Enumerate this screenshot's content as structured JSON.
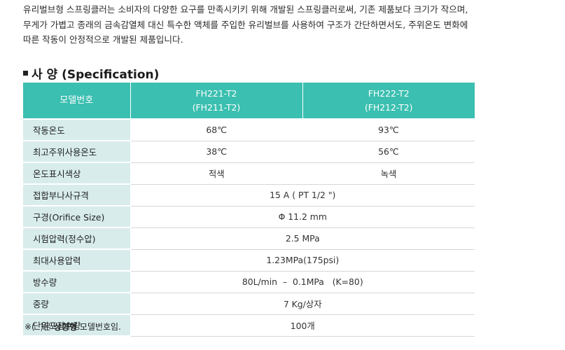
{
  "intro": [
    "유리벌브형 스프링클러는 소비자의 다양한 요구를 만족시키키 위해 개발된 스프링클러로써, 기존 제품보다 크기가 작으며,",
    "무게가 가볍고 종래의 금속감열체 대신 특수한 액체를 주입한 유리벌브를 사용하여 구조가 간단하면서도, 주위온도 변화에",
    "따른 작동이 안정적으로 개발된 제품입니다."
  ],
  "heading": "사 양 (Specification)",
  "table": {
    "header_label": "모델번호",
    "models": [
      {
        "line1": "FH221-T2",
        "line2": "(FH211-T2)"
      },
      {
        "line1": "FH222-T2",
        "line2": "(FH212-T2)"
      }
    ],
    "split_rows": [
      {
        "label": "작동온도",
        "values": [
          "68℃",
          "93℃"
        ]
      },
      {
        "label": "최고주위사용온도",
        "values": [
          "38℃",
          "56℃"
        ]
      },
      {
        "label": "온도표시색상",
        "values": [
          "적색",
          "녹색"
        ]
      }
    ],
    "merged_rows": [
      {
        "label": "접합부나사규격",
        "value": "15 A ( PT 1/2 \")"
      },
      {
        "label": "구경(Orifice Size)",
        "value": "Φ 11.2 mm"
      },
      {
        "label": "시험압력(정수압)",
        "value": "2.5 MPa"
      },
      {
        "label": "최대사용압력",
        "value": "1.23MPa(175psi)"
      },
      {
        "label": "방수량",
        "value": "80L/min  –  0.1MPa   (K=80)"
      },
      {
        "label": "중량",
        "value": "7 Kg/상자"
      },
      {
        "label": "단위포장수량",
        "value": "100개"
      }
    ]
  },
  "footnote": {
    "prefix": "※(  )은 ",
    "bold": "상향형",
    "suffix": " 모델번호임."
  },
  "colors": {
    "header_bg": "#3bbfb0",
    "label_bg": "#d8ecec"
  }
}
